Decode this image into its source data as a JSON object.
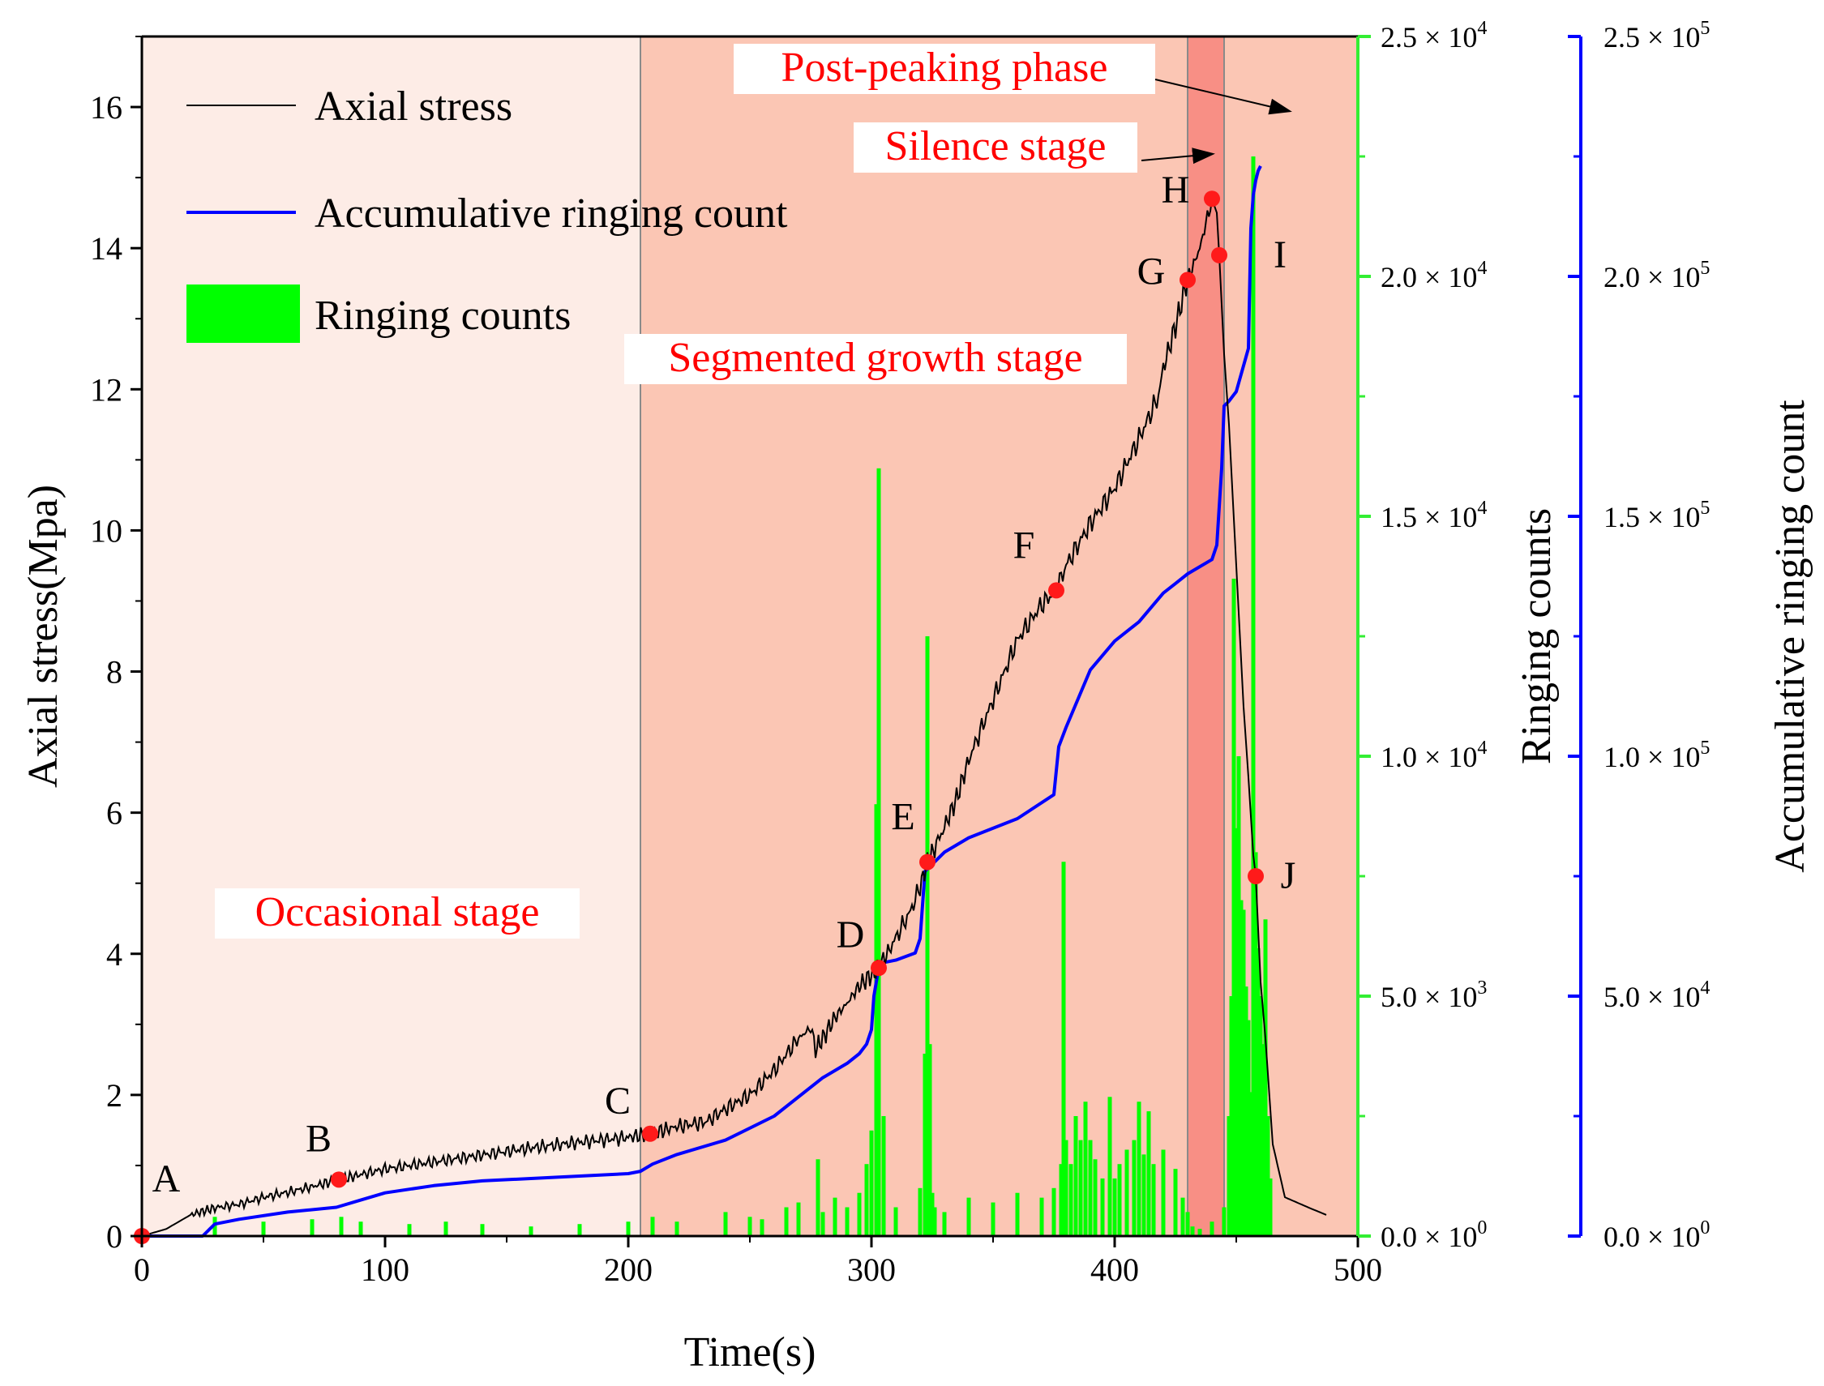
{
  "chart_data": {
    "type": "line+bar",
    "xlabel": "Time(s)",
    "ylabel_left": "Axial stress(Mpa)",
    "ylabel_right1": "Ringing counts",
    "ylabel_right2": "Accumulative ringing count",
    "xlim": [
      0,
      500
    ],
    "ylim_left": [
      0,
      17
    ],
    "ylim_right1": [
      0,
      25000
    ],
    "ylim_right2": [
      0,
      250000
    ],
    "x_ticks": [
      "0",
      "100",
      "200",
      "300",
      "400",
      "500"
    ],
    "y_left_ticks": [
      "0",
      "2",
      "4",
      "6",
      "8",
      "10",
      "12",
      "14",
      "16"
    ],
    "y_right1_ticks": [
      {
        "m": "0.0",
        "e": "0"
      },
      {
        "m": "5.0",
        "e": "3"
      },
      {
        "m": "1.0",
        "e": "4"
      },
      {
        "m": "1.5",
        "e": "4"
      },
      {
        "m": "2.0",
        "e": "4"
      },
      {
        "m": "2.5",
        "e": "4"
      }
    ],
    "y_right2_ticks": [
      {
        "m": "0.0",
        "e": "0"
      },
      {
        "m": "5.0",
        "e": "4"
      },
      {
        "m": "1.0",
        "e": "5"
      },
      {
        "m": "1.5",
        "e": "5"
      },
      {
        "m": "2.0",
        "e": "5"
      },
      {
        "m": "2.5",
        "e": "5"
      }
    ],
    "times_sign": "×",
    "base": "10",
    "legend": [
      {
        "label": "Axial stress",
        "color": "#000000",
        "kind": "line"
      },
      {
        "label": "Accumulative ringing count",
        "color": "#0000ff",
        "kind": "line"
      },
      {
        "label": "Ringing counts",
        "color": "#00ff00",
        "kind": "bar"
      }
    ],
    "stages": [
      {
        "name": "Occasional stage",
        "x0": 0,
        "x1": 205,
        "color": "#fdece6"
      },
      {
        "name": "Segmented growth stage",
        "x0": 205,
        "x1": 430,
        "color": "#fbc6b4"
      },
      {
        "name": "Silence stage",
        "x0": 430,
        "x1": 445,
        "color": "#f88f85"
      },
      {
        "name": "Post-peaking phase",
        "x0": 445,
        "x1": 500,
        "color": "#fbc6b4"
      }
    ],
    "stage_boundaries": [
      205,
      430,
      445
    ],
    "points": [
      {
        "label": "A",
        "x": 0,
        "y": 0
      },
      {
        "label": "B",
        "x": 81,
        "y": 0.8
      },
      {
        "label": "C",
        "x": 209,
        "y": 1.45
      },
      {
        "label": "D",
        "x": 303,
        "y": 3.8
      },
      {
        "label": "E",
        "x": 323,
        "y": 5.3
      },
      {
        "label": "F",
        "x": 376,
        "y": 9.15
      },
      {
        "label": "G",
        "x": 430,
        "y": 13.55
      },
      {
        "label": "H",
        "x": 440,
        "y": 14.7
      },
      {
        "label": "I",
        "x": 443,
        "y": 13.9
      },
      {
        "label": "J",
        "x": 458,
        "y": 5.1
      }
    ],
    "axial_stress": {
      "x": [
        0,
        5,
        10,
        15,
        20,
        25,
        30,
        40,
        50,
        60,
        70,
        81,
        90,
        100,
        120,
        140,
        160,
        180,
        200,
        209,
        220,
        232,
        240,
        250,
        260,
        270,
        275,
        277,
        280,
        285,
        290,
        295,
        300,
        303,
        308,
        312,
        316,
        320,
        323,
        326,
        330,
        335,
        340,
        350,
        360,
        370,
        376,
        380,
        390,
        400,
        410,
        418,
        420,
        425,
        430,
        435,
        440,
        442,
        443,
        445,
        447,
        450,
        453,
        455,
        457,
        458,
        460,
        462,
        465,
        470,
        480,
        487
      ],
      "y": [
        0,
        0.05,
        0.1,
        0.2,
        0.3,
        0.35,
        0.4,
        0.45,
        0.55,
        0.62,
        0.7,
        0.8,
        0.87,
        0.95,
        1.05,
        1.15,
        1.25,
        1.33,
        1.4,
        1.45,
        1.55,
        1.62,
        1.8,
        2.0,
        2.35,
        2.8,
        2.95,
        2.65,
        2.8,
        3.1,
        3.3,
        3.55,
        3.7,
        3.8,
        4.1,
        4.35,
        4.6,
        4.95,
        5.3,
        5.5,
        5.8,
        6.2,
        6.75,
        7.6,
        8.45,
        8.95,
        9.15,
        9.5,
        10.1,
        10.6,
        11.3,
        11.9,
        12.3,
        12.9,
        13.55,
        14.0,
        14.7,
        14.5,
        13.9,
        12.5,
        11.5,
        9.5,
        7.5,
        6.5,
        5.4,
        5.1,
        3.6,
        2.8,
        1.3,
        0.55,
        0.4,
        0.3
      ]
    },
    "accumulative_count": {
      "x": [
        0,
        25,
        28,
        30,
        40,
        60,
        80,
        90,
        100,
        120,
        140,
        160,
        180,
        200,
        205,
        210,
        220,
        240,
        260,
        280,
        290,
        295,
        298,
        300,
        301,
        303,
        305,
        310,
        318,
        320,
        322,
        324,
        330,
        340,
        360,
        375,
        377,
        380,
        390,
        400,
        410,
        420,
        425,
        430,
        440,
        442,
        444,
        445,
        447,
        450,
        455,
        456,
        457,
        458,
        459,
        460
      ],
      "y": [
        0,
        0,
        1500,
        2500,
        3500,
        5000,
        6000,
        7500,
        9000,
        10500,
        11500,
        12000,
        12500,
        13000,
        13500,
        15000,
        17000,
        20000,
        25000,
        33000,
        36000,
        38000,
        40000,
        43000,
        50000,
        56000,
        57000,
        57500,
        59000,
        62000,
        76000,
        77000,
        80000,
        83000,
        87000,
        92000,
        102000,
        106000,
        118000,
        124000,
        128000,
        134000,
        136000,
        138000,
        141000,
        144000,
        160000,
        173000,
        174000,
        176000,
        185000,
        210000,
        217000,
        220000,
        222000,
        223000
      ]
    },
    "ringing_counts": {
      "x": [
        30,
        50,
        70,
        82,
        90,
        110,
        125,
        140,
        160,
        180,
        200,
        210,
        220,
        240,
        250,
        255,
        265,
        270,
        278,
        280,
        285,
        290,
        295,
        298,
        300,
        302,
        303,
        305,
        310,
        320,
        322,
        323,
        324,
        325,
        326,
        330,
        340,
        350,
        360,
        370,
        375,
        378,
        379,
        380,
        382,
        384,
        386,
        388,
        390,
        392,
        395,
        398,
        400,
        402,
        405,
        408,
        410,
        412,
        414,
        416,
        420,
        425,
        428,
        430,
        432,
        435,
        440,
        445,
        447,
        448,
        449,
        450,
        451,
        452,
        453,
        454,
        455,
        456,
        457,
        458,
        459,
        460,
        461,
        462,
        463,
        464
      ],
      "y": [
        400,
        300,
        350,
        400,
        300,
        250,
        300,
        250,
        200,
        250,
        300,
        400,
        300,
        500,
        400,
        350,
        600,
        700,
        1600,
        500,
        800,
        600,
        900,
        1500,
        2200,
        9000,
        16000,
        2500,
        600,
        1000,
        3800,
        12500,
        4000,
        900,
        600,
        500,
        800,
        700,
        900,
        800,
        1000,
        1500,
        7800,
        2000,
        1500,
        2500,
        2000,
        2800,
        2000,
        1600,
        1200,
        2900,
        1200,
        1500,
        1800,
        2000,
        2800,
        1700,
        2600,
        1500,
        1800,
        1400,
        800,
        500,
        200,
        150,
        300,
        600,
        2500,
        5000,
        13700,
        8500,
        10000,
        7000,
        6800,
        5200,
        4500,
        3000,
        22500,
        8000,
        6000,
        5000,
        4000,
        6600,
        2500,
        1200
      ]
    }
  }
}
